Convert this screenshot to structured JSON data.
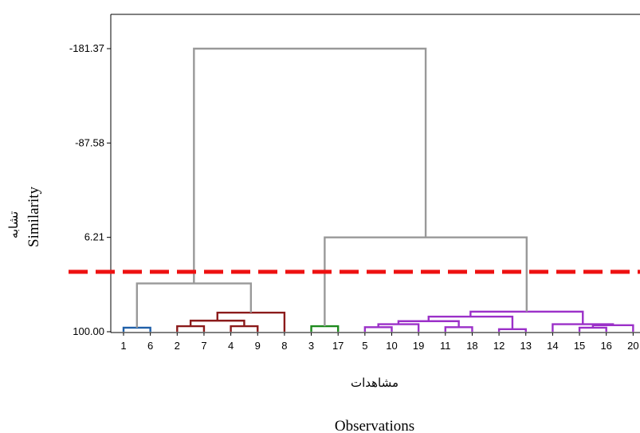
{
  "chart_data": {
    "type": "dendrogram",
    "title": "",
    "xlabel": "Observations",
    "xlabel_fa": "مشاهدات",
    "ylabel": "Similarity",
    "ylabel_fa": "تشابه",
    "y_ticks": [
      "-181.37",
      "-87.58",
      "6.21",
      "100.00"
    ],
    "ylim": [
      100.0,
      -181.37
    ],
    "leaves": [
      "1",
      "6",
      "2",
      "7",
      "4",
      "9",
      "8",
      "3",
      "17",
      "5",
      "10",
      "19",
      "11",
      "18",
      "12",
      "13",
      "14",
      "15",
      "16",
      "20"
    ],
    "cut_line": {
      "similarity": 40.5,
      "color": "#ee1111",
      "style": "dashed"
    },
    "merges": [
      {
        "left": "1",
        "right": "6",
        "similarity": 96.0,
        "cluster": 1
      },
      {
        "left": "2",
        "right": "7",
        "similarity": 94.5,
        "cluster": 2
      },
      {
        "left": "4",
        "right": "9",
        "similarity": 94.5,
        "cluster": 2
      },
      {
        "left": "(2,7)",
        "right": "(4,9)",
        "similarity": 89.0,
        "cluster": 2
      },
      {
        "left": "(2,7,4,9)",
        "right": "8",
        "similarity": 81.0,
        "cluster": 2
      },
      {
        "left": "(1,6)",
        "right": "(2,7,4,9,8)",
        "similarity": 52.0,
        "cluster": 0
      },
      {
        "left": "3",
        "right": "17",
        "similarity": 94.5,
        "cluster": 3
      },
      {
        "left": "5",
        "right": "10",
        "similarity": 95.5,
        "cluster": 4
      },
      {
        "left": "(5,10)",
        "right": "19",
        "similarity": 92.5,
        "cluster": 4
      },
      {
        "left": "11",
        "right": "18",
        "similarity": 95.5,
        "cluster": 4
      },
      {
        "left": "(5,10,19)",
        "right": "(11,18)",
        "similarity": 89.5,
        "cluster": 4
      },
      {
        "left": "12",
        "right": "13",
        "similarity": 97.5,
        "cluster": 4
      },
      {
        "left": "(5,10,19,11,18)",
        "right": "(12,13)",
        "similarity": 85.0,
        "cluster": 4
      },
      {
        "left": "15",
        "right": "16",
        "similarity": 96.0,
        "cluster": 4
      },
      {
        "left": "(15,16)",
        "right": "20",
        "similarity": 93.5,
        "cluster": 4
      },
      {
        "left": "14",
        "right": "(15,16,20)",
        "similarity": 92.5,
        "cluster": 4
      },
      {
        "left": "(5,10,19,11,18,12,13)",
        "right": "(14,15,16,20)",
        "similarity": 80.0,
        "cluster": 4
      },
      {
        "left": "3,17",
        "right": "(5..20)",
        "similarity": 6.21,
        "cluster": 0
      },
      {
        "left": "(1..8)",
        "right": "(3..20)",
        "similarity": -181.37,
        "cluster": 0
      }
    ],
    "cluster_colors": {
      "0": "#999999",
      "1": "#1f5fa8",
      "2": "#8b1a1a",
      "3": "#1e8a1e",
      "4": "#9b30c8"
    },
    "grid": false,
    "legend": "none"
  }
}
